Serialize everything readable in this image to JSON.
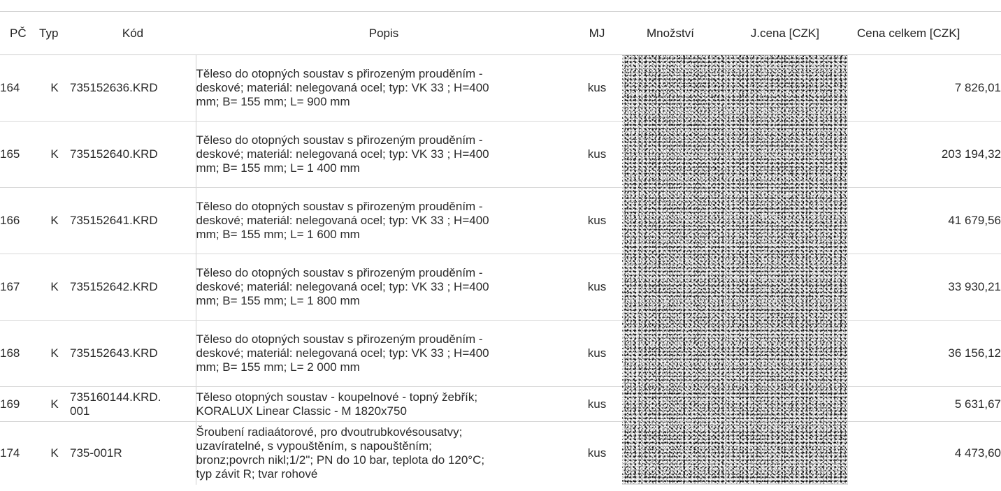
{
  "headers": {
    "pc": "PČ",
    "typ": "Typ",
    "kod": "Kód",
    "popis": "Popis",
    "mj": "MJ",
    "mnozstvi": "Množství",
    "jcena": "J.cena [CZK]",
    "cena_celkem": "Cena celkem [CZK]"
  },
  "rows": [
    {
      "pc": "164",
      "typ": "K",
      "kod": [
        "735152636.KRD"
      ],
      "popis": [
        "Těleso do otopných soustav s přirozeným prouděním -",
        "deskové; materiál: nelegovaná ocel; typ: VK 33 ; H=400",
        "mm; B= 155 mm; L= 900 mm"
      ],
      "mj": "kus",
      "cena_celkem": "7 826,01"
    },
    {
      "pc": "165",
      "typ": "K",
      "kod": [
        "735152640.KRD"
      ],
      "popis": [
        "Těleso do otopných soustav s přirozeným prouděním -",
        "deskové; materiál: nelegovaná ocel; typ: VK 33 ; H=400",
        "mm; B= 155 mm; L= 1 400 mm"
      ],
      "mj": "kus",
      "cena_celkem": "203 194,32"
    },
    {
      "pc": "166",
      "typ": "K",
      "kod": [
        "735152641.KRD"
      ],
      "popis": [
        "Těleso do otopných soustav s přirozeným prouděním -",
        "deskové; materiál: nelegovaná ocel; typ: VK 33 ; H=400",
        "mm; B= 155 mm; L= 1 600 mm"
      ],
      "mj": "kus",
      "cena_celkem": "41 679,56"
    },
    {
      "pc": "167",
      "typ": "K",
      "kod": [
        "735152642.KRD"
      ],
      "popis": [
        "Těleso do otopných soustav s přirozeným prouděním -",
        "deskové; materiál: nelegovaná ocel; typ: VK 33 ; H=400",
        "mm; B= 155 mm; L= 1 800 mm"
      ],
      "mj": "kus",
      "cena_celkem": "33 930,21"
    },
    {
      "pc": "168",
      "typ": "K",
      "kod": [
        "735152643.KRD"
      ],
      "popis": [
        "Těleso do otopných soustav s přirozeným prouděním -",
        "deskové; materiál: nelegovaná ocel; typ: VK 33 ; H=400",
        "mm; B= 155 mm; L= 2 000 mm"
      ],
      "mj": "kus",
      "cena_celkem": "36 156,12"
    },
    {
      "pc": "169",
      "typ": "K",
      "kod": [
        "735160144.KRD.",
        "001"
      ],
      "popis": [
        "Těleso otopných soustav - koupelnové - topný žebřík;",
        "KORALUX Linear Classic - M 1820x750"
      ],
      "mj": "kus",
      "cena_celkem": "5 631,67"
    },
    {
      "pc": "174",
      "typ": "K",
      "kod": [
        "735-001R"
      ],
      "popis": [
        "Šroubení radiaátorové, pro dvoutrubkovésousatvy;",
        "uzavíratelné, s vypouštěním, s napouštěním;",
        "bronz;povrch nikl;1/2\"; PN do 10 bar, teplota do 120°C;",
        "typ závit R; tvar rohové"
      ],
      "mj": "kus",
      "cena_celkem": "4 473,60"
    }
  ]
}
